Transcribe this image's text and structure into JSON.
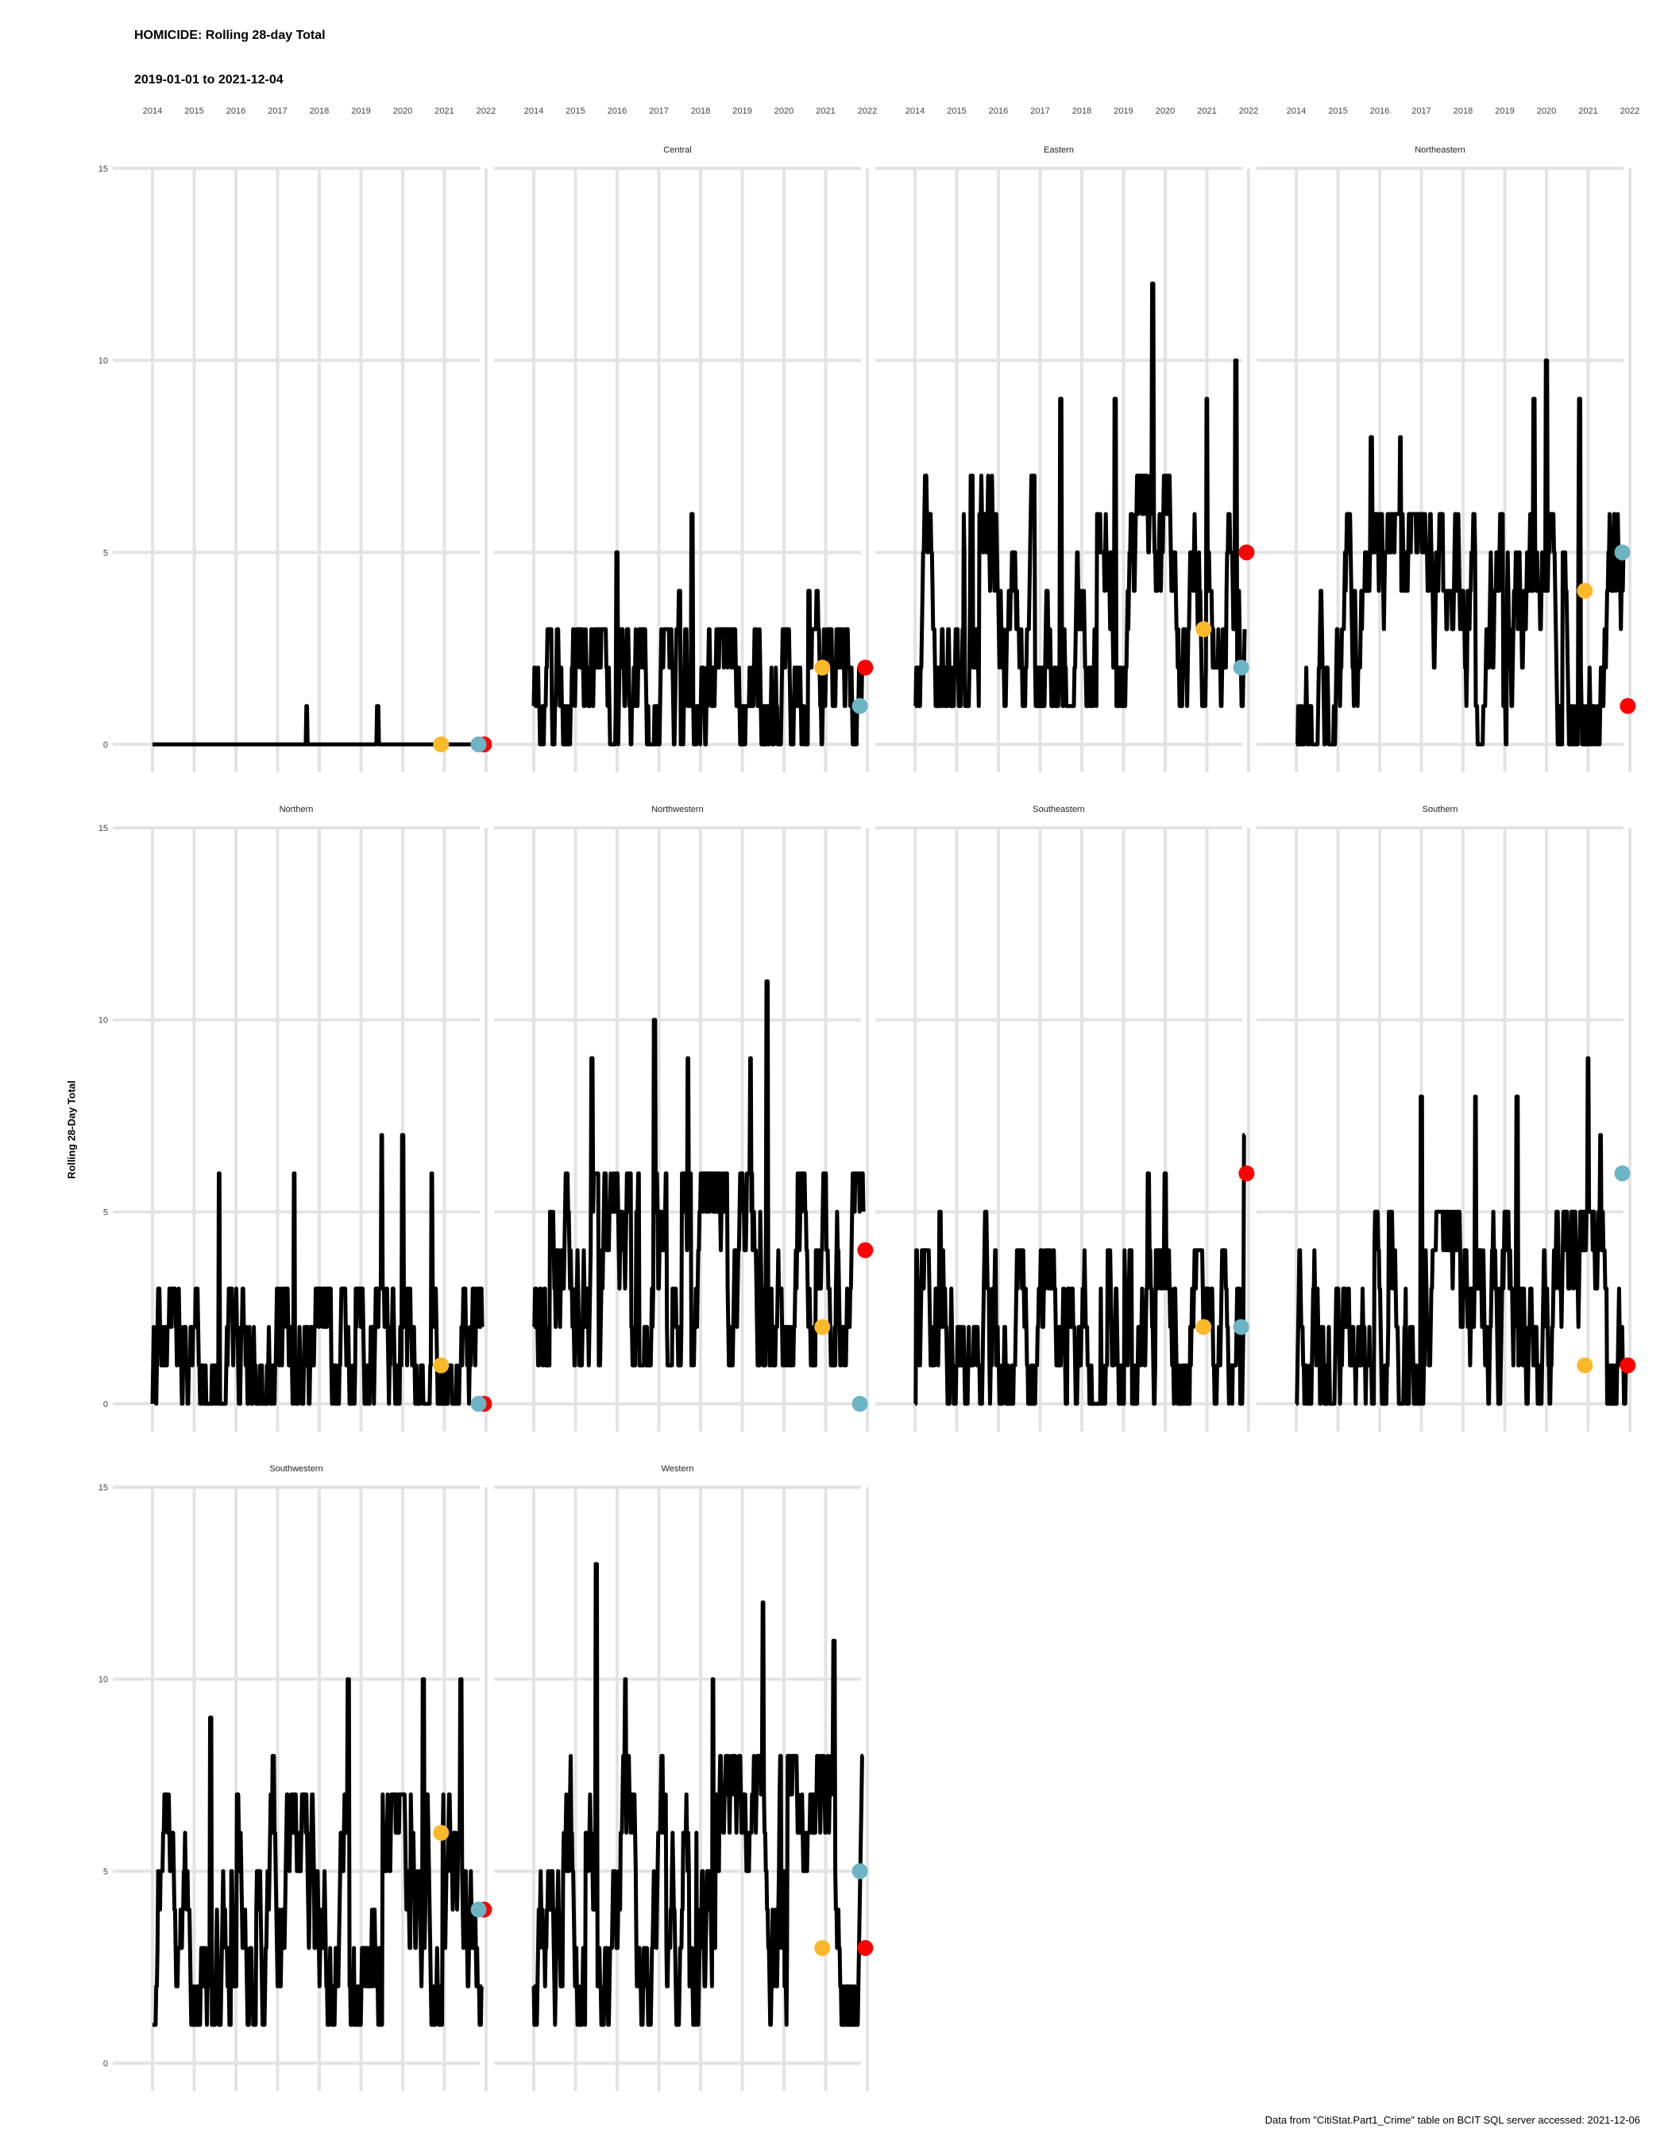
{
  "chart_data": {
    "type": "line",
    "title": "HOMICIDE: Rolling 28-day Total",
    "subtitle": "2019-01-01 to 2021-12-04",
    "ylabel": "Rolling 28-Day Total",
    "caption": "Data from \"CitiStat.Part1_Crime\" table on BCIT SQL server accessed: 2021-12-06",
    "x_ticks": [
      "2014",
      "2015",
      "2016",
      "2017",
      "2018",
      "2019",
      "2020",
      "2021",
      "2022"
    ],
    "y_ticks": [
      0,
      5,
      10,
      15
    ],
    "ylim": [
      0,
      15
    ],
    "xlim": [
      2014,
      2022
    ],
    "grid": true,
    "x_ticks_position": "top",
    "marker_colors": {
      "one_year_ago": "#FBB829",
      "current": "#6CB4C4",
      "latest": "#FF0000"
    },
    "panels": [
      {
        "name": "",
        "range": [
          0,
          0
        ],
        "spikes": [
          {
            "x": 2017.7,
            "y": 1
          },
          {
            "x": 2019.4,
            "y": 1
          }
        ],
        "markers": {
          "one_year_ago": 0,
          "current": 0,
          "latest": 0
        }
      },
      {
        "name": "Central",
        "range": [
          0,
          3
        ],
        "spikes": [
          {
            "x": 2016.0,
            "y": 5
          },
          {
            "x": 2017.8,
            "y": 6
          },
          {
            "x": 2017.5,
            "y": 4
          },
          {
            "x": 2020.8,
            "y": 4
          },
          {
            "x": 2020.6,
            "y": 4
          }
        ],
        "markers": {
          "one_year_ago": 2,
          "current": 1,
          "latest": 2
        }
      },
      {
        "name": "Eastern",
        "range": [
          1,
          7
        ],
        "spikes": [
          {
            "x": 2019.7,
            "y": 12
          },
          {
            "x": 2018.8,
            "y": 9
          },
          {
            "x": 2017.5,
            "y": 9
          },
          {
            "x": 2021.7,
            "y": 10
          },
          {
            "x": 2021.0,
            "y": 9
          }
        ],
        "markers": {
          "one_year_ago": 3,
          "current": 2,
          "latest": 5
        }
      },
      {
        "name": "Northeastern",
        "range": [
          0,
          6
        ],
        "spikes": [
          {
            "x": 2020.0,
            "y": 10
          },
          {
            "x": 2019.7,
            "y": 9
          },
          {
            "x": 2020.8,
            "y": 9
          },
          {
            "x": 2016.5,
            "y": 8
          },
          {
            "x": 2015.8,
            "y": 8
          }
        ],
        "markers": {
          "one_year_ago": 4,
          "current": 5,
          "latest": 1
        }
      },
      {
        "name": "Northern",
        "range": [
          0,
          3
        ],
        "spikes": [
          {
            "x": 2015.6,
            "y": 6
          },
          {
            "x": 2017.4,
            "y": 6
          },
          {
            "x": 2019.5,
            "y": 7
          },
          {
            "x": 2020.0,
            "y": 7
          },
          {
            "x": 2020.7,
            "y": 6
          }
        ],
        "markers": {
          "one_year_ago": 1,
          "current": 0,
          "latest": 0
        }
      },
      {
        "name": "Northwestern",
        "range": [
          1,
          6
        ],
        "spikes": [
          {
            "x": 2016.9,
            "y": 10
          },
          {
            "x": 2019.6,
            "y": 11
          },
          {
            "x": 2015.4,
            "y": 9
          },
          {
            "x": 2017.7,
            "y": 9
          },
          {
            "x": 2019.2,
            "y": 9
          }
        ],
        "markers": {
          "one_year_ago": 2,
          "current": 0,
          "latest": 4
        }
      },
      {
        "name": "Southeastern",
        "range": [
          0,
          4
        ],
        "spikes": [
          {
            "x": 2014.6,
            "y": 5
          },
          {
            "x": 2015.7,
            "y": 5
          },
          {
            "x": 2019.6,
            "y": 6
          },
          {
            "x": 2020.0,
            "y": 6
          },
          {
            "x": 2021.9,
            "y": 7
          }
        ],
        "markers": {
          "one_year_ago": 2,
          "current": 2,
          "latest": 6
        }
      },
      {
        "name": "Southern",
        "range": [
          0,
          5
        ],
        "spikes": [
          {
            "x": 2021.0,
            "y": 9
          },
          {
            "x": 2018.3,
            "y": 8
          },
          {
            "x": 2019.3,
            "y": 8
          },
          {
            "x": 2017.0,
            "y": 8
          },
          {
            "x": 2021.3,
            "y": 7
          }
        ],
        "markers": {
          "one_year_ago": 1,
          "current": 6,
          "latest": 1
        }
      },
      {
        "name": "Southwestern",
        "range": [
          1,
          7
        ],
        "spikes": [
          {
            "x": 2018.7,
            "y": 10
          },
          {
            "x": 2020.5,
            "y": 10
          },
          {
            "x": 2021.4,
            "y": 10
          },
          {
            "x": 2015.4,
            "y": 9
          },
          {
            "x": 2016.9,
            "y": 8
          }
        ],
        "markers": {
          "one_year_ago": 6,
          "current": 4,
          "latest": 4
        }
      },
      {
        "name": "Western",
        "range": [
          1,
          8
        ],
        "spikes": [
          {
            "x": 2015.5,
            "y": 13
          },
          {
            "x": 2019.5,
            "y": 12
          },
          {
            "x": 2021.2,
            "y": 11
          },
          {
            "x": 2016.2,
            "y": 10
          },
          {
            "x": 2018.3,
            "y": 10
          }
        ],
        "markers": {
          "one_year_ago": 3,
          "current": 5,
          "latest": 3
        }
      }
    ]
  }
}
